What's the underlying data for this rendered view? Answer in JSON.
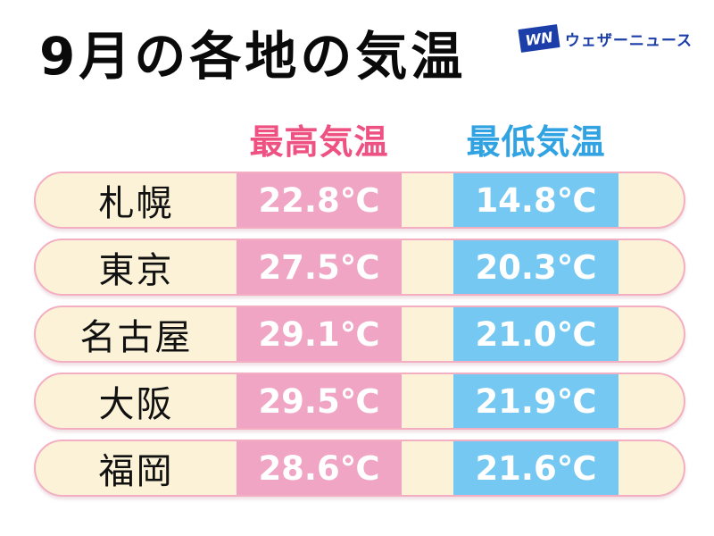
{
  "page": {
    "title": "9月の各地の気温"
  },
  "logo": {
    "monogram": "WN",
    "text": "ウェザーニュース"
  },
  "table": {
    "columns": [
      {
        "id": "max",
        "label": "最高気温"
      },
      {
        "id": "min",
        "label": "最低気温"
      }
    ],
    "rows": [
      {
        "city": "札幌",
        "max": "22.8℃",
        "min": "14.8℃"
      },
      {
        "city": "東京",
        "max": "27.5℃",
        "min": "20.3℃"
      },
      {
        "city": "名古屋",
        "max": "29.1℃",
        "min": "21.0℃"
      },
      {
        "city": "大阪",
        "max": "29.5℃",
        "min": "21.9℃"
      },
      {
        "city": "福岡",
        "max": "28.6℃",
        "min": "21.6℃"
      }
    ]
  },
  "colors": {
    "max_cell": "#EFA5C3",
    "min_cell": "#74C8F2",
    "max_header": "#EE5283",
    "min_header": "#32A3E2",
    "row_bg": "#FBF2D8",
    "row_border": "#F3AFC1",
    "logo_blue": "#1C3EA9",
    "title_color": "#0A0A0A"
  },
  "chart_data": {
    "type": "table",
    "title": "9月の各地の気温",
    "categories": [
      "札幌",
      "東京",
      "名古屋",
      "大阪",
      "福岡"
    ],
    "series": [
      {
        "name": "最高気温",
        "unit": "℃",
        "values": [
          22.8,
          27.5,
          29.1,
          29.5,
          28.6
        ]
      },
      {
        "name": "最低気温",
        "unit": "℃",
        "values": [
          14.8,
          20.3,
          21.0,
          21.9,
          21.6
        ]
      }
    ],
    "layout": "rows are pill-shaped bands; city name left, max-temp pink cell, min-temp blue cell"
  }
}
